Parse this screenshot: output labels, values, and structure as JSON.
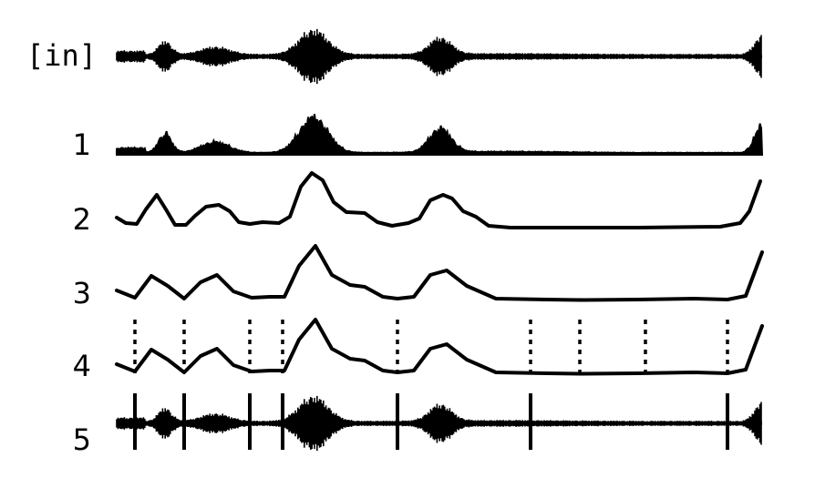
{
  "colors": {
    "ink": "#000000",
    "background": "#ffffff"
  },
  "rows": [
    {
      "id": "in",
      "label": "[in]",
      "kind": "waveform"
    },
    {
      "id": "1",
      "label": "1",
      "kind": "envelope"
    },
    {
      "id": "2",
      "label": "2",
      "kind": "smooth-curve"
    },
    {
      "id": "3",
      "label": "3",
      "kind": "piecewise-curve"
    },
    {
      "id": "4",
      "label": "4",
      "kind": "piecewise-curve-with-onset-candidates"
    },
    {
      "id": "5",
      "label": "5",
      "kind": "waveform-with-onsets"
    }
  ]
}
